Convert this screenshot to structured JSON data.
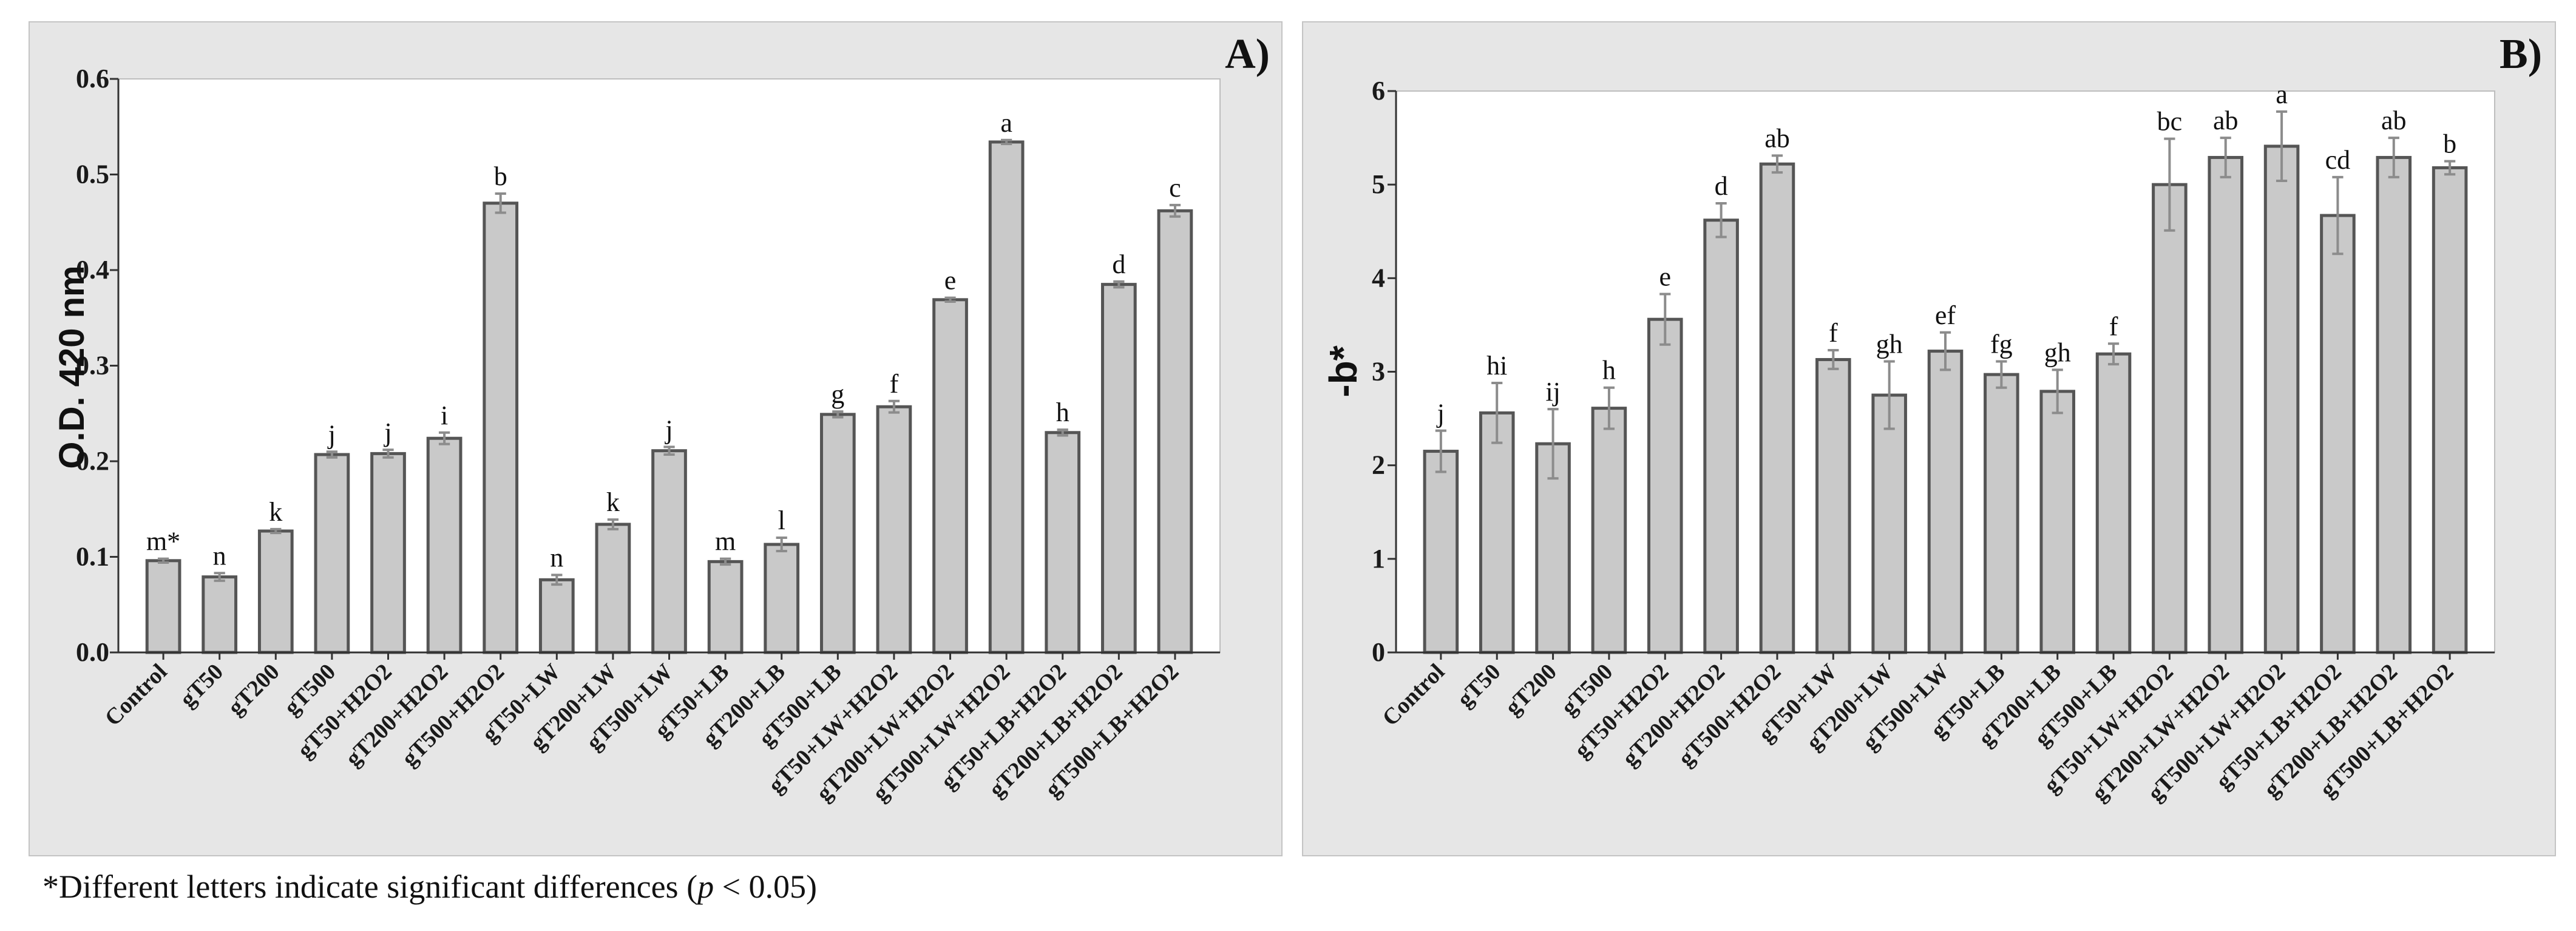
{
  "footnote": {
    "text_before": "*Different letters indicate significant differences (",
    "p_symbol": "p",
    "text_after": " < 0.05)"
  },
  "colors": {
    "panel_background": "#e6e6e6",
    "plot_background": "#ffffff",
    "bar_fill": "#c9c9c9",
    "bar_edge": "#555555",
    "error_bar": "#8c8c8c"
  },
  "chart_data": [
    {
      "type": "bar",
      "panel_label": "A)",
      "title": "",
      "xlabel": "",
      "ylabel": "O.D. 420 nm",
      "ylim": [
        0,
        0.6
      ],
      "yticks": [
        "0.0",
        "0.1",
        "0.2",
        "0.3",
        "0.4",
        "0.5",
        "0.6"
      ],
      "categories": [
        "Control",
        "gT50",
        "gT200",
        "gT500",
        "gT50+H2O2",
        "gT200+H2O2",
        "gT500+H2O2",
        "gT50+LW",
        "gT200+LW",
        "gT500+LW",
        "gT50+LB",
        "gT200+LB",
        "gT500+LB",
        "gT50+LW+H2O2",
        "gT200+LW+H2O2",
        "gT500+LW+H2O2",
        "gT50+LB+H2O2",
        "gT200+LB+H2O2",
        "gT500+LB+H2O2"
      ],
      "values": [
        0.096,
        0.079,
        0.127,
        0.207,
        0.208,
        0.224,
        0.47,
        0.076,
        0.134,
        0.211,
        0.095,
        0.113,
        0.249,
        0.257,
        0.369,
        0.534,
        0.23,
        0.385,
        0.462
      ],
      "errors": [
        0.002,
        0.004,
        0.002,
        0.003,
        0.004,
        0.006,
        0.01,
        0.005,
        0.005,
        0.004,
        0.003,
        0.007,
        0.003,
        0.006,
        0.002,
        0.002,
        0.003,
        0.003,
        0.006
      ],
      "letters": [
        "m*",
        "n",
        "k",
        "j",
        "j",
        "i",
        "b",
        "n",
        "k",
        "j",
        "m",
        "l",
        "g",
        "f",
        "e",
        "a",
        "h",
        "d",
        "c"
      ]
    },
    {
      "type": "bar",
      "panel_label": "B)",
      "title": "",
      "xlabel": "",
      "ylabel": "-b*",
      "ylim": [
        0,
        6
      ],
      "yticks": [
        "0",
        "1",
        "2",
        "3",
        "4",
        "5",
        "6"
      ],
      "categories": [
        "Control",
        "gT50",
        "gT200",
        "gT500",
        "gT50+H2O2",
        "gT200+H2O2",
        "gT500+H2O2",
        "gT50+LW",
        "gT200+LW",
        "gT500+LW",
        "gT50+LB",
        "gT200+LB",
        "gT500+LB",
        "gT50+LW+H2O2",
        "gT200+LW+H2O2",
        "gT500+LW+H2O2",
        "gT50+LB+H2O2",
        "gT200+LB+H2O2",
        "gT500+LB+H2O2"
      ],
      "values": [
        2.15,
        2.56,
        2.23,
        2.61,
        3.56,
        4.62,
        5.22,
        3.13,
        2.75,
        3.22,
        2.97,
        2.79,
        3.19,
        5.0,
        5.29,
        5.41,
        4.67,
        5.29,
        5.18
      ],
      "errors": [
        0.22,
        0.32,
        0.37,
        0.22,
        0.27,
        0.18,
        0.09,
        0.1,
        0.36,
        0.2,
        0.14,
        0.23,
        0.11,
        0.49,
        0.21,
        0.37,
        0.41,
        0.21,
        0.07
      ],
      "letters": [
        "j",
        "hi",
        "ij",
        "h",
        "e",
        "d",
        "ab",
        "f",
        "gh",
        "ef",
        "fg",
        "gh",
        "f",
        "bc",
        "ab",
        "a",
        "cd",
        "ab",
        "b"
      ]
    }
  ]
}
